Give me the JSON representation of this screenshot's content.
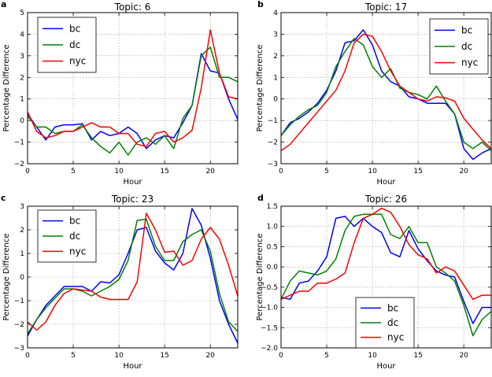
{
  "colors": {
    "bc": "#0000ff",
    "dc": "#008000",
    "nyc": "#ff0000"
  },
  "chart_data": [
    {
      "type": "line",
      "panel_label": "a",
      "title": "Topic: 6",
      "xlabel": "Hour",
      "ylabel": "Percentage Difference",
      "xlim": [
        0,
        23
      ],
      "ylim": [
        -2,
        5
      ],
      "xticks": [
        0,
        5,
        10,
        15,
        20
      ],
      "yticks": [
        -2,
        -1,
        0,
        1,
        2,
        3,
        4,
        5
      ],
      "grid": true,
      "legend_position": "upper-left",
      "x": [
        0,
        1,
        2,
        3,
        4,
        5,
        6,
        7,
        8,
        9,
        10,
        11,
        12,
        13,
        14,
        15,
        16,
        17,
        18,
        19,
        20,
        21,
        22,
        23
      ],
      "series": [
        {
          "name": "bc",
          "values": [
            0.3,
            -0.3,
            -0.9,
            -0.3,
            -0.2,
            -0.2,
            -0.15,
            -0.9,
            -0.5,
            -0.7,
            -0.6,
            -0.3,
            -0.6,
            -1.3,
            -0.9,
            -0.7,
            -0.8,
            -0.1,
            0.7,
            3.1,
            2.3,
            2.2,
            1.0,
            0.05
          ]
        },
        {
          "name": "dc",
          "values": [
            0.2,
            -0.3,
            -0.3,
            -0.6,
            -0.5,
            -0.5,
            -0.2,
            -0.8,
            -1.2,
            -1.5,
            -1.0,
            -1.6,
            -1.0,
            -0.8,
            -1.1,
            -0.7,
            -1.3,
            0.1,
            0.7,
            3.0,
            3.4,
            2.0,
            2.0,
            1.8
          ]
        },
        {
          "name": "nyc",
          "values": [
            0.4,
            -0.5,
            -0.8,
            -0.7,
            -0.5,
            -0.5,
            -0.3,
            -0.1,
            -0.3,
            -0.3,
            -0.6,
            -0.6,
            -1.1,
            -1.2,
            -0.6,
            -0.5,
            -1.0,
            -0.8,
            -0.45,
            1.5,
            4.2,
            2.2,
            1.1,
            1.0
          ]
        }
      ]
    },
    {
      "type": "line",
      "panel_label": "b",
      "title": "Topic: 17",
      "xlabel": "Hour",
      "ylabel": "Percentage Difference",
      "xlim": [
        0,
        23
      ],
      "ylim": [
        -3,
        4
      ],
      "xticks": [
        0,
        5,
        10,
        15,
        20
      ],
      "yticks": [
        -3,
        -2,
        -1,
        0,
        1,
        2,
        3,
        4
      ],
      "grid": true,
      "legend_position": "upper-right",
      "x": [
        0,
        1,
        2,
        3,
        4,
        5,
        6,
        7,
        8,
        9,
        10,
        11,
        12,
        13,
        14,
        15,
        16,
        17,
        18,
        19,
        20,
        21,
        22,
        23
      ],
      "series": [
        {
          "name": "bc",
          "values": [
            -1.7,
            -1.1,
            -0.9,
            -0.6,
            -0.2,
            0.4,
            1.3,
            2.6,
            2.7,
            3.2,
            2.5,
            1.3,
            0.8,
            0.6,
            0.1,
            0.0,
            -0.2,
            -0.2,
            -0.2,
            -0.7,
            -2.3,
            -2.8,
            -2.5,
            -2.3
          ]
        },
        {
          "name": "dc",
          "values": [
            -1.7,
            -1.2,
            -0.8,
            -0.5,
            -0.3,
            0.3,
            1.5,
            2.2,
            2.8,
            2.5,
            1.5,
            1.0,
            1.4,
            0.5,
            0.3,
            0.2,
            0.0,
            0.6,
            -0.1,
            -0.7,
            -2.0,
            -2.3,
            -2.0,
            -2.4
          ]
        },
        {
          "name": "nyc",
          "values": [
            -2.4,
            -2.1,
            -1.6,
            -1.1,
            -0.6,
            -0.1,
            0.4,
            1.3,
            2.6,
            3.0,
            2.9,
            2.2,
            1.3,
            0.6,
            0.3,
            0.0,
            -0.1,
            0.1,
            0.05,
            -0.1,
            -0.9,
            -1.4,
            -1.9,
            -2.3
          ]
        }
      ]
    },
    {
      "type": "line",
      "panel_label": "c",
      "title": "Topic: 23",
      "xlabel": "Hour",
      "ylabel": "Percentage Difference",
      "xlim": [
        0,
        23
      ],
      "ylim": [
        -3,
        3
      ],
      "xticks": [
        0,
        5,
        10,
        15,
        20
      ],
      "yticks": [
        -3,
        -2,
        -1,
        0,
        1,
        2,
        3
      ],
      "grid": true,
      "legend_position": "upper-left",
      "x": [
        0,
        1,
        2,
        3,
        4,
        5,
        6,
        7,
        8,
        9,
        10,
        11,
        12,
        13,
        14,
        15,
        16,
        17,
        18,
        19,
        20,
        21,
        22,
        23
      ],
      "series": [
        {
          "name": "bc",
          "values": [
            -2.5,
            -1.8,
            -1.2,
            -0.8,
            -0.4,
            -0.4,
            -0.4,
            -0.6,
            -0.2,
            -0.25,
            0.1,
            1.0,
            2.0,
            2.1,
            1.1,
            0.6,
            0.3,
            1.0,
            2.9,
            2.2,
            0.8,
            -1.0,
            -2.0,
            -2.8
          ]
        },
        {
          "name": "dc",
          "values": [
            -2.4,
            -1.8,
            -1.3,
            -0.9,
            -0.5,
            -0.5,
            -0.6,
            -0.8,
            -0.6,
            -0.4,
            -0.1,
            0.7,
            2.4,
            2.45,
            1.3,
            0.7,
            0.7,
            1.5,
            1.8,
            2.0,
            1.1,
            -0.7,
            -1.9,
            -2.3
          ]
        },
        {
          "name": "nyc",
          "values": [
            -1.9,
            -2.25,
            -1.9,
            -1.2,
            -0.7,
            -0.5,
            -0.55,
            -0.6,
            -0.85,
            -0.95,
            -0.95,
            -0.95,
            -0.2,
            2.7,
            2.0,
            1.05,
            1.1,
            0.5,
            0.7,
            1.6,
            2.1,
            1.6,
            0.5,
            -0.8
          ]
        }
      ]
    },
    {
      "type": "line",
      "panel_label": "d",
      "title": "Topic: 26",
      "xlabel": "Hour",
      "ylabel": "Percentage Difference",
      "xlim": [
        0,
        23
      ],
      "ylim": [
        -2,
        1.5
      ],
      "xticks": [
        0,
        5,
        10,
        15,
        20
      ],
      "yticks": [
        -2.0,
        -1.5,
        -1.0,
        -0.5,
        0.0,
        0.5,
        1.0,
        1.5
      ],
      "grid": true,
      "legend_position": "lower-center",
      "x": [
        0,
        1,
        2,
        3,
        4,
        5,
        6,
        7,
        8,
        9,
        10,
        11,
        12,
        13,
        14,
        15,
        16,
        17,
        18,
        19,
        20,
        21,
        22,
        23
      ],
      "series": [
        {
          "name": "bc",
          "values": [
            -0.75,
            -0.8,
            -0.4,
            -0.35,
            -0.1,
            0.25,
            1.2,
            1.25,
            1.0,
            1.2,
            1.0,
            0.85,
            0.35,
            0.25,
            0.9,
            0.45,
            0.15,
            -0.1,
            -0.2,
            -0.25,
            -0.85,
            -1.4,
            -1.0,
            -1.0
          ]
        },
        {
          "name": "dc",
          "values": [
            -0.8,
            -0.35,
            -0.1,
            -0.15,
            -0.2,
            -0.1,
            0.2,
            0.9,
            1.25,
            1.3,
            1.3,
            1.3,
            0.8,
            0.7,
            1.0,
            0.6,
            0.6,
            0.0,
            -0.15,
            -0.35,
            -0.95,
            -1.7,
            -1.3,
            -1.1
          ]
        },
        {
          "name": "nyc",
          "values": [
            -0.8,
            -0.7,
            -0.6,
            -0.6,
            -0.4,
            -0.4,
            -0.3,
            -0.15,
            0.6,
            1.2,
            1.3,
            1.45,
            1.35,
            1.0,
            0.55,
            0.3,
            0.2,
            -0.15,
            0.0,
            -0.1,
            -0.45,
            -0.8,
            -0.7,
            -0.7
          ]
        }
      ]
    }
  ]
}
